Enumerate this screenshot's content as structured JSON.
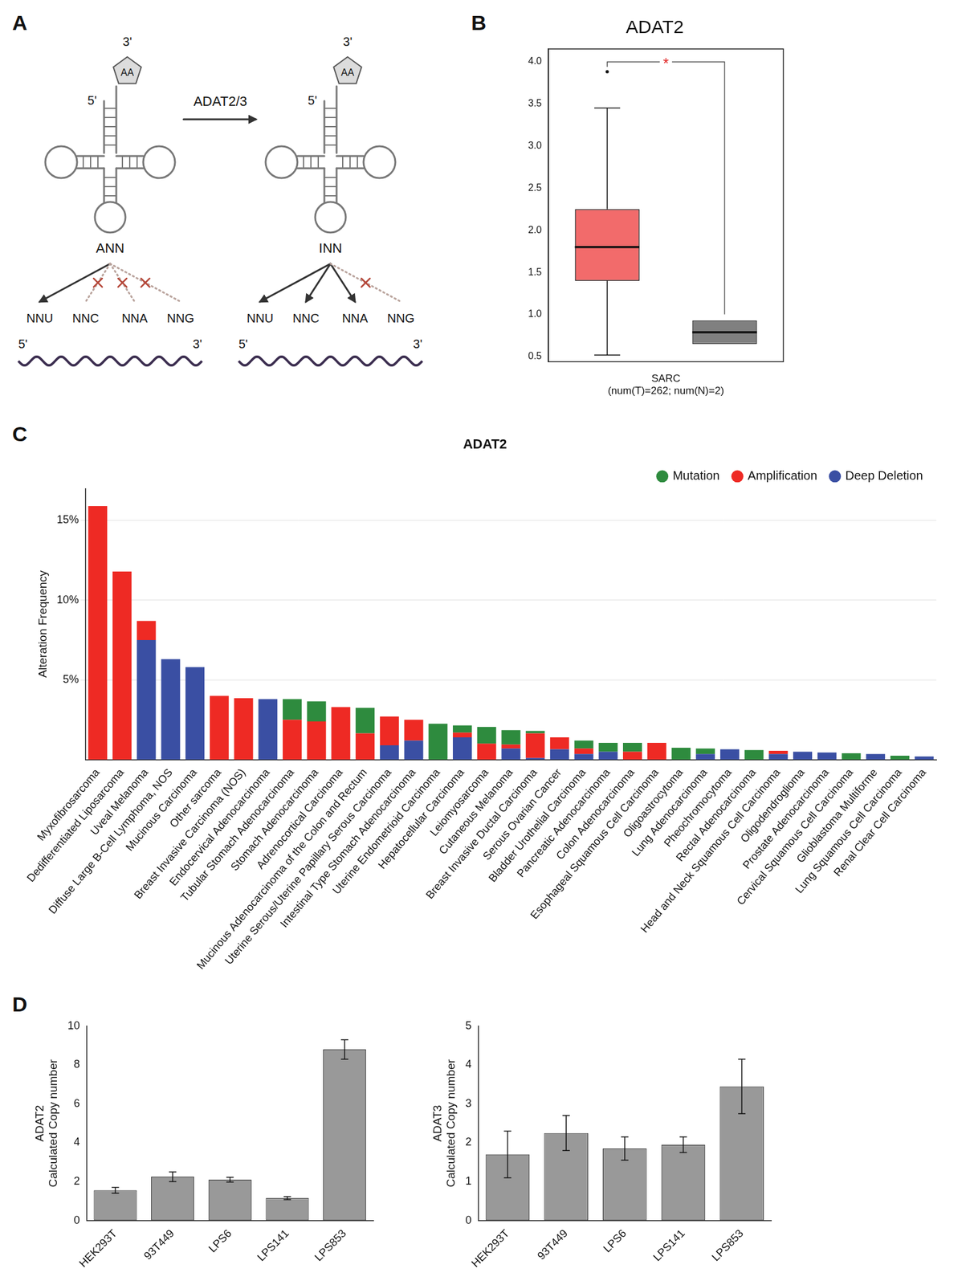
{
  "diagram": {
    "panel": "A",
    "enzyme": "ADAT2/3",
    "trnas": [
      {
        "anticodon": "ANN",
        "end5": "5'",
        "end3": "3'",
        "amino_acid": "AA",
        "mrna": {
          "end5": "5'",
          "end3": "3'"
        },
        "codons": [
          {
            "text": "NNU",
            "decoded": true
          },
          {
            "text": "NNC",
            "decoded": false
          },
          {
            "text": "NNA",
            "decoded": false
          },
          {
            "text": "NNG",
            "decoded": false
          }
        ]
      },
      {
        "anticodon": "INN",
        "end5": "5'",
        "end3": "3'",
        "amino_acid": "AA",
        "mrna": {
          "end5": "5'",
          "end3": "3'"
        },
        "codons": [
          {
            "text": "NNU",
            "decoded": true
          },
          {
            "text": "NNC",
            "decoded": true
          },
          {
            "text": "NNA",
            "decoded": true
          },
          {
            "text": "NNG",
            "decoded": false
          }
        ]
      }
    ]
  },
  "chart_data": [
    {
      "type": "box",
      "panel": "B",
      "title": "ADAT2",
      "x_label": [
        "SARC",
        "(num(T)=262; num(N)=2)"
      ],
      "boxes": [
        {
          "color": "#f26b6b",
          "min": 0.52,
          "q1": 1.4,
          "median": 1.8,
          "q3": 2.25,
          "max": 3.45,
          "outliers": [
            3.88
          ]
        },
        {
          "color": "#808080",
          "min": 0.65,
          "q1": 0.65,
          "median": 0.79,
          "q3": 0.93,
          "max": 0.93,
          "outliers": []
        }
      ],
      "significance": {
        "text": "*",
        "color": "#e02020"
      },
      "ylim": [
        0.44,
        4.15
      ],
      "yticks": [
        0.5,
        {
          "value": 1,
          "label": "1.0"
        },
        1.5,
        {
          "value": 2,
          "label": "2.0"
        },
        2.5,
        {
          "value": 3,
          "label": "3.0"
        },
        3.5,
        {
          "value": 4,
          "label": "4.0"
        }
      ],
      "grid": false
    },
    {
      "type": "bar",
      "panel": "C",
      "title": "ADAT2",
      "y_label": "Alteration Frequency",
      "categories": [
        "Myxofibrosarcoma",
        "Dedifferentiated Liposarcoma",
        "Uveal Melanoma",
        "Diffuse Large B-Cell Lymphoma, NOS",
        "Mucinous Carcinoma",
        "Other sarcoma",
        "Breast Invasive Carcinoma (NOS)",
        "Endocervical Adenocarcinoma",
        "Tubular Stomach Adenocarcinoma",
        "Stomach Adenocarcinoma",
        "Adrenocortical Carcinoma",
        "Mucinous Adenocarcinoma of the Colon and Rectum",
        "Uterine Serous/Uterine Papillary Serous Carcinoma",
        "Intestinal Type Stomach Adenocarcinoma",
        "Uterine Endometrioid Carcinoma",
        "Hepatocellular Carcinoma",
        "Leiomyosarcoma",
        "Cutaneous Melanoma",
        "Breast Invasive Ductal Carcinoma",
        "Serous Ovarian Cancer",
        "Bladder Urothelial Carcinoma",
        "Pancreatic Adenocarcinoma",
        "Colon Adenocarcinoma",
        "Esophageal Squamous Cell Carcinoma",
        "Oligoastrocytoma",
        "Lung Adenocarcinoma",
        "Pheochromocytoma",
        "Rectal Adenocarcinoma",
        "Head and Neck Squamous Cell Carcinoma",
        "Oligodendroglioma",
        "Prostate Adenocarcinoma",
        "Cervical Squamous Cell Carcinoma",
        "Glioblastoma Multiforme",
        "Lung Squamous Cell Carcinoma",
        "Renal Clear Cell Carcinoma"
      ],
      "series": [
        {
          "name": "Mutation",
          "color": "#2e8b3e",
          "values": [
            0,
            0,
            0,
            0,
            0,
            0,
            0,
            0,
            1.3,
            1.25,
            0,
            1.6,
            0,
            0,
            2.25,
            0.45,
            1.05,
            0.9,
            0.15,
            0,
            0.5,
            0.55,
            0.55,
            0,
            0.75,
            0.35,
            0,
            0.6,
            0,
            0,
            0,
            0.4,
            0,
            0.25,
            0
          ]
        },
        {
          "name": "Amplification",
          "color": "#ee2a24",
          "values": [
            15.9,
            11.8,
            1.2,
            0,
            0,
            4,
            3.85,
            0,
            2.5,
            2.4,
            3.3,
            1.65,
            1.8,
            1.3,
            0,
            0.3,
            1,
            0.25,
            1.55,
            0.75,
            0.35,
            0,
            0.5,
            1.05,
            0,
            0,
            0,
            0,
            0.2,
            0,
            0,
            0,
            0,
            0,
            0
          ]
        },
        {
          "name": "Deep Deletion",
          "color": "#3a4fa3",
          "values": [
            0,
            0,
            7.5,
            6.3,
            5.8,
            0,
            0,
            3.8,
            0,
            0,
            0,
            0,
            0.9,
            1.2,
            0,
            1.4,
            0,
            0.7,
            0.1,
            0.65,
            0.35,
            0.5,
            0,
            0,
            0,
            0.35,
            0.65,
            0,
            0.35,
            0.5,
            0.45,
            0,
            0.35,
            0,
            0.2
          ]
        }
      ],
      "stacked": true,
      "legend": "top-right",
      "ylim": [
        0,
        17
      ],
      "yticks": [
        {
          "value": 5,
          "label": "5%"
        },
        {
          "value": 10,
          "label": "10%"
        },
        {
          "value": 15,
          "label": "15%"
        }
      ],
      "grid": true
    },
    {
      "type": "bar",
      "panel": "D",
      "y_label": [
        "ADAT2",
        "Calculated Copy number"
      ],
      "categories": [
        "HEK293T",
        "93T449",
        "LPS6",
        "LPS141",
        "LPS853"
      ],
      "values": [
        1.55,
        2.25,
        2.1,
        1.15,
        8.8
      ],
      "errors": [
        0.15,
        0.25,
        0.12,
        0.08,
        0.5
      ],
      "color": "#999999",
      "ylim": [
        0,
        10
      ],
      "yticks": [
        0,
        2,
        4,
        6,
        8,
        10
      ],
      "grid": false
    },
    {
      "type": "bar",
      "y_label": [
        "ADAT3",
        "Calculated Copy number"
      ],
      "categories": [
        "HEK293T",
        "93T449",
        "LPS6",
        "LPS141",
        "LPS853"
      ],
      "values": [
        1.7,
        2.25,
        1.85,
        1.95,
        3.45
      ],
      "errors": [
        0.6,
        0.45,
        0.3,
        0.2,
        0.7
      ],
      "color": "#999999",
      "ylim": [
        0,
        5
      ],
      "yticks": [
        0,
        1,
        2,
        3,
        4,
        5
      ],
      "grid": false
    }
  ]
}
